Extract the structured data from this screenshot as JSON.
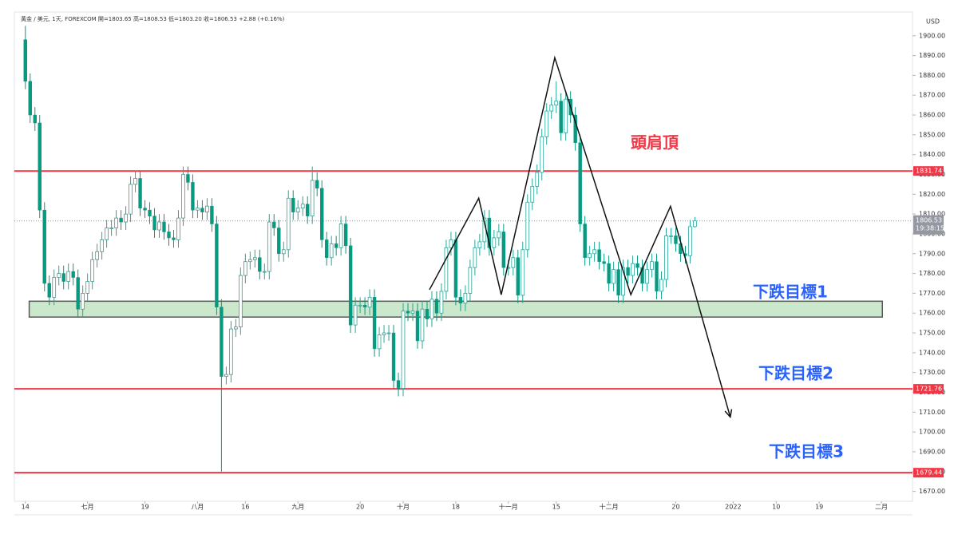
{
  "chart_data": {
    "type": "candlestick",
    "header": "黃金 / 美元, 1天, FOREXCOM  開=1803.65  高=1808.53  低=1803.20  收=1806.53  +2.88 (+0.16%)",
    "currency": "USD",
    "countdown": "19:38:15",
    "up_color": "#26a69a",
    "down_color": "#089981",
    "xlim": [
      -2.3,
      185.5
    ],
    "ylim": [
      1665,
      1912
    ],
    "xticks": [
      {
        "value": 0,
        "label": "14"
      },
      {
        "value": 13,
        "label": "七月"
      },
      {
        "value": 25,
        "label": "19"
      },
      {
        "value": 36,
        "label": "八月"
      },
      {
        "value": 46,
        "label": "16"
      },
      {
        "value": 57,
        "label": "九月"
      },
      {
        "value": 70,
        "label": "20"
      },
      {
        "value": 79,
        "label": "十月"
      },
      {
        "value": 90,
        "label": "18"
      },
      {
        "value": 101,
        "label": "十一月"
      },
      {
        "value": 111,
        "label": "15"
      },
      {
        "value": 122,
        "label": "十二月"
      },
      {
        "value": 136,
        "label": "20"
      },
      {
        "value": 148,
        "label": "2022"
      },
      {
        "value": 157,
        "label": "10"
      },
      {
        "value": 166,
        "label": "19"
      },
      {
        "value": 179,
        "label": "二月"
      }
    ],
    "yticks": [
      {
        "value": 1670,
        "label": "1670.00"
      },
      {
        "value": 1680,
        "label": "1680.00"
      },
      {
        "value": 1690,
        "label": "1690.00"
      },
      {
        "value": 1700,
        "label": "1700.00"
      },
      {
        "value": 1710,
        "label": "1710.00"
      },
      {
        "value": 1720,
        "label": "1720.00"
      },
      {
        "value": 1730,
        "label": "1730.00"
      },
      {
        "value": 1740,
        "label": "1740.00"
      },
      {
        "value": 1750,
        "label": "1750.00"
      },
      {
        "value": 1760,
        "label": "1760.00"
      },
      {
        "value": 1770,
        "label": "1770.00"
      },
      {
        "value": 1780,
        "label": "1780.00"
      },
      {
        "value": 1790,
        "label": "1790.00"
      },
      {
        "value": 1800,
        "label": "1800.00"
      },
      {
        "value": 1810,
        "label": "1810.00"
      },
      {
        "value": 1820,
        "label": "1820.00"
      },
      {
        "value": 1830,
        "label": "1830.00"
      },
      {
        "value": 1840,
        "label": "1840.00"
      },
      {
        "value": 1850,
        "label": "1850.00"
      },
      {
        "value": 1860,
        "label": "1860.00"
      },
      {
        "value": 1870,
        "label": "1870.00"
      },
      {
        "value": 1880,
        "label": "1880.00"
      },
      {
        "value": 1890,
        "label": "1890.00"
      },
      {
        "value": 1900,
        "label": "1900.00"
      }
    ],
    "open": [
      1898,
      1877,
      1860,
      1856,
      1812,
      1775,
      1768,
      1778,
      1780,
      1776,
      1781,
      1778,
      1762,
      1770,
      1776,
      1787,
      1791,
      1797,
      1803,
      1803,
      1808,
      1806,
      1810,
      1825,
      1828,
      1813,
      1812,
      1809,
      1802,
      1806,
      1801,
      1798,
      1797,
      1808,
      1830,
      1826,
      1812,
      1813,
      1811,
      1814,
      1805,
      1763,
      1728,
      1729,
      1752,
      1753,
      1779,
      1786,
      1787,
      1788,
      1781,
      1781,
      1806,
      1803,
      1790,
      1792,
      1818,
      1811,
      1813,
      1815,
      1809,
      1827,
      1823,
      1797,
      1788,
      1795,
      1793,
      1805,
      1794,
      1754,
      1764,
      1764,
      1763,
      1768,
      1742,
      1749,
      1750,
      1750,
      1726,
      1722,
      1761,
      1760,
      1761,
      1746,
      1762,
      1757,
      1767,
      1760,
      1771,
      1793,
      1797,
      1768,
      1765,
      1770,
      1783,
      1793,
      1796,
      1808,
      1793,
      1798,
      1801,
      1783,
      1783,
      1788,
      1769,
      1792,
      1816,
      1824,
      1831,
      1849,
      1862,
      1865,
      1867,
      1851,
      1868,
      1860,
      1846,
      1805,
      1788,
      1790,
      1792,
      1786,
      1785,
      1775,
      1782,
      1769,
      1783,
      1779,
      1785,
      1783,
      1775,
      1782,
      1786,
      1771,
      1777,
      1799,
      1799,
      1795,
      1790,
      1789,
      1803.65
    ],
    "high": [
      1905,
      1881,
      1864,
      1860,
      1816,
      1779,
      1782,
      1784,
      1784,
      1785,
      1785,
      1782,
      1774,
      1780,
      1791,
      1795,
      1801,
      1807,
      1807,
      1812,
      1812,
      1814,
      1829,
      1832,
      1832,
      1817,
      1816,
      1813,
      1810,
      1810,
      1805,
      1802,
      1812,
      1834,
      1834,
      1830,
      1817,
      1817,
      1818,
      1818,
      1809,
      1767,
      1733,
      1756,
      1757,
      1783,
      1790,
      1791,
      1792,
      1792,
      1785,
      1810,
      1810,
      1807,
      1796,
      1822,
      1822,
      1817,
      1819,
      1819,
      1834,
      1831,
      1827,
      1801,
      1799,
      1799,
      1809,
      1809,
      1798,
      1768,
      1768,
      1768,
      1772,
      1772,
      1753,
      1754,
      1754,
      1754,
      1730,
      1765,
      1765,
      1765,
      1765,
      1766,
      1766,
      1771,
      1771,
      1775,
      1797,
      1801,
      1801,
      1772,
      1774,
      1787,
      1797,
      1800,
      1812,
      1812,
      1802,
      1805,
      1805,
      1787,
      1792,
      1792,
      1796,
      1820,
      1828,
      1835,
      1853,
      1866,
      1869,
      1877,
      1871,
      1872,
      1872,
      1864,
      1850,
      1809,
      1794,
      1796,
      1796,
      1790,
      1789,
      1786,
      1786,
      1787,
      1787,
      1789,
      1789,
      1787,
      1786,
      1790,
      1790,
      1781,
      1803,
      1803,
      1803,
      1799,
      1794,
      1807,
      1808.53
    ],
    "low": [
      1873,
      1856,
      1852,
      1808,
      1771,
      1764,
      1764,
      1774,
      1772,
      1772,
      1774,
      1758,
      1758,
      1766,
      1772,
      1783,
      1787,
      1793,
      1799,
      1799,
      1802,
      1802,
      1806,
      1821,
      1809,
      1808,
      1805,
      1798,
      1798,
      1797,
      1794,
      1793,
      1793,
      1804,
      1822,
      1808,
      1808,
      1807,
      1807,
      1801,
      1759,
      1680,
      1724,
      1725,
      1748,
      1749,
      1775,
      1782,
      1783,
      1777,
      1777,
      1777,
      1799,
      1786,
      1786,
      1788,
      1807,
      1807,
      1809,
      1805,
      1805,
      1819,
      1793,
      1784,
      1784,
      1789,
      1789,
      1790,
      1750,
      1750,
      1760,
      1759,
      1759,
      1738,
      1738,
      1745,
      1746,
      1722,
      1718,
      1718,
      1756,
      1756,
      1742,
      1742,
      1753,
      1753,
      1756,
      1756,
      1767,
      1789,
      1764,
      1761,
      1761,
      1766,
      1779,
      1789,
      1792,
      1789,
      1789,
      1794,
      1779,
      1779,
      1779,
      1765,
      1765,
      1788,
      1812,
      1820,
      1827,
      1845,
      1858,
      1861,
      1847,
      1847,
      1856,
      1842,
      1801,
      1784,
      1784,
      1786,
      1782,
      1781,
      1771,
      1771,
      1765,
      1765,
      1775,
      1775,
      1779,
      1771,
      1771,
      1778,
      1767,
      1767,
      1773,
      1795,
      1791,
      1786,
      1785,
      1785,
      1803.2
    ],
    "close": [
      1877,
      1860,
      1856,
      1812,
      1775,
      1768,
      1778,
      1780,
      1776,
      1781,
      1778,
      1762,
      1770,
      1776,
      1787,
      1791,
      1797,
      1803,
      1803,
      1808,
      1806,
      1810,
      1825,
      1828,
      1813,
      1812,
      1809,
      1802,
      1806,
      1801,
      1798,
      1797,
      1808,
      1830,
      1826,
      1812,
      1813,
      1811,
      1814,
      1805,
      1763,
      1728,
      1729,
      1752,
      1753,
      1779,
      1786,
      1787,
      1788,
      1781,
      1781,
      1806,
      1803,
      1790,
      1792,
      1818,
      1811,
      1813,
      1815,
      1809,
      1827,
      1823,
      1797,
      1788,
      1795,
      1793,
      1805,
      1794,
      1754,
      1764,
      1764,
      1763,
      1768,
      1742,
      1749,
      1750,
      1750,
      1726,
      1722,
      1761,
      1760,
      1761,
      1746,
      1762,
      1757,
      1767,
      1760,
      1771,
      1793,
      1797,
      1768,
      1765,
      1770,
      1783,
      1793,
      1796,
      1808,
      1793,
      1798,
      1801,
      1783,
      1783,
      1788,
      1769,
      1792,
      1816,
      1824,
      1831,
      1849,
      1862,
      1865,
      1867,
      1851,
      1868,
      1860,
      1846,
      1805,
      1788,
      1790,
      1792,
      1786,
      1785,
      1775,
      1782,
      1769,
      1783,
      1779,
      1785,
      1783,
      1775,
      1782,
      1786,
      1771,
      1777,
      1799,
      1799,
      1795,
      1790,
      1789,
      1803.65,
      1806.53
    ],
    "last_price": 1806.53,
    "levels": [
      {
        "value": 1831.74,
        "color": "#f23645"
      },
      {
        "value": 1721.76,
        "color": "#f23645"
      },
      {
        "value": 1679.44,
        "color": "#f23645"
      }
    ],
    "zone": {
      "low": 1758,
      "high": 1766,
      "start": 0.8,
      "end": 179.2,
      "color": "#cce8cc"
    },
    "pattern": {
      "x": [
        84.5,
        94.8,
        99.5,
        110.7,
        126.6,
        134.9,
        147.4
      ],
      "y": [
        1771.8,
        1818,
        1769.3,
        1888.9,
        1769.3,
        1813.9,
        1707.5
      ]
    },
    "annotations": [
      {
        "text": "頭肩頂",
        "color": "#f23645"
      },
      {
        "text": "下跌目標1",
        "color": "#2962ff"
      },
      {
        "text": "下跌目標2",
        "color": "#2962ff"
      },
      {
        "text": "下跌目標3",
        "color": "#2962ff"
      }
    ]
  }
}
